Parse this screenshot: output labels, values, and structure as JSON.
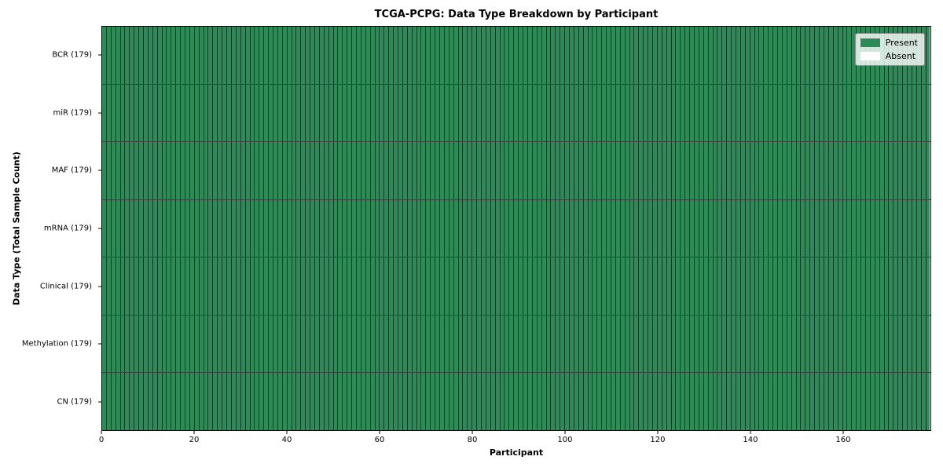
{
  "chart_data": {
    "type": "heatmap",
    "title": "TCGA-PCPG: Data Type Breakdown by Participant",
    "xlabel": "Participant",
    "ylabel": "Data Type (Total Sample Count)",
    "n_participants": 179,
    "xlim": [
      0,
      179
    ],
    "x_ticks": [
      0,
      20,
      40,
      60,
      80,
      100,
      120,
      140,
      160
    ],
    "rows": [
      {
        "label": "BCR (179)",
        "data_type": "BCR",
        "total_sample_count": 179,
        "present": 179,
        "absent": 0
      },
      {
        "label": "miR (179)",
        "data_type": "miR",
        "total_sample_count": 179,
        "present": 179,
        "absent": 0
      },
      {
        "label": "MAF (179)",
        "data_type": "MAF",
        "total_sample_count": 179,
        "present": 179,
        "absent": 0
      },
      {
        "label": "mRNA (179)",
        "data_type": "mRNA",
        "total_sample_count": 179,
        "present": 179,
        "absent": 0
      },
      {
        "label": "Clinical (179)",
        "data_type": "Clinical",
        "total_sample_count": 179,
        "present": 179,
        "absent": 0
      },
      {
        "label": "Methylation (179)",
        "data_type": "Methylation",
        "total_sample_count": 179,
        "present": 179,
        "absent": 0
      },
      {
        "label": "CN (179)",
        "data_type": "CN",
        "total_sample_count": 179,
        "present": 179,
        "absent": 0
      }
    ],
    "legend": {
      "position": "upper right",
      "items": [
        {
          "label": "Present",
          "color": "#2e8b57"
        },
        {
          "label": "Absent",
          "color": "#ffffff"
        }
      ]
    },
    "colors": {
      "present": "#2e8b57",
      "absent": "#ffffff",
      "cell_edge": "rgba(5,30,18,0.72)",
      "axis": "#000000"
    },
    "grid": "cell-edges"
  }
}
